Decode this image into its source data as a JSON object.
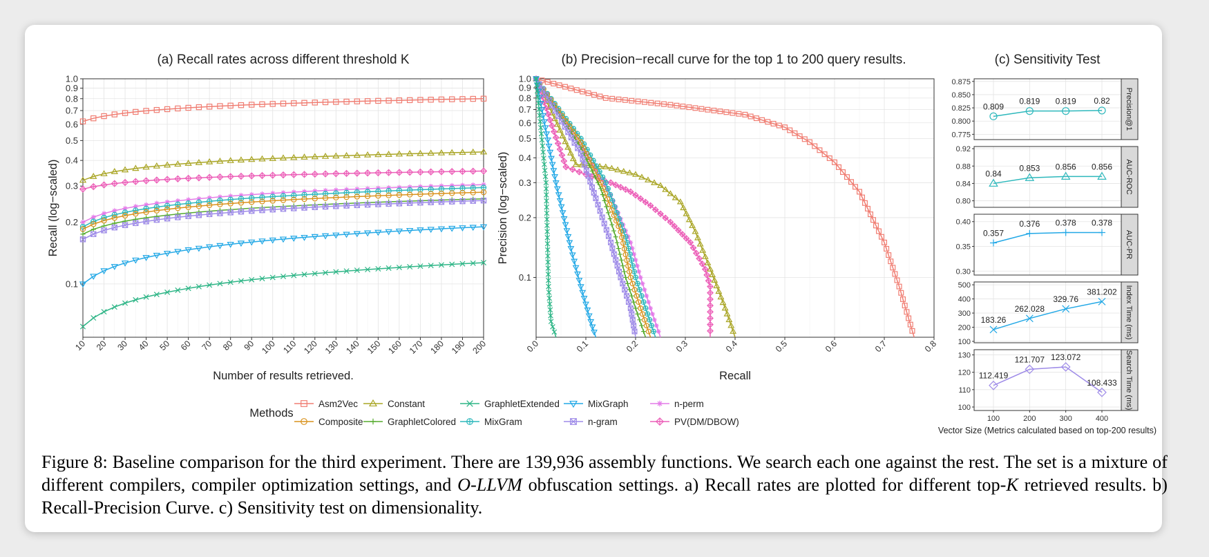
{
  "chart_data": [
    {
      "type": "line"
    },
    {
      "type": "line"
    },
    {
      "type": "line"
    }
  ],
  "legend": {
    "title": "Methods",
    "items": [
      {
        "name": "Asm2Vec",
        "color": "#F07D72",
        "shape": "square"
      },
      {
        "name": "Composite",
        "color": "#D9921D",
        "shape": "circle"
      },
      {
        "name": "Constant",
        "color": "#A9A524",
        "shape": "triangle"
      },
      {
        "name": "GraphletColored",
        "color": "#55AB2D",
        "shape": "plus"
      },
      {
        "name": "GraphletExtended",
        "color": "#2DB586",
        "shape": "cross"
      },
      {
        "name": "MixGram",
        "color": "#2DB8BC",
        "shape": "circle-plus"
      },
      {
        "name": "MixGraph",
        "color": "#22A8E6",
        "shape": "triangle-down"
      },
      {
        "name": "n-gram",
        "color": "#9E8BE8",
        "shape": "square-cross"
      },
      {
        "name": "n-perm",
        "color": "#E37AE8",
        "shape": "asterisk"
      },
      {
        "name": "PV(DM/DBOW)",
        "color": "#EC5FB8",
        "shape": "diamond-plus"
      }
    ]
  },
  "panel_a": {
    "title": "(a) Recall rates across different threshold K",
    "xlabel": "Number of results retrieved.",
    "ylabel": "Recall (log−scaled)",
    "xlim": [
      10,
      200
    ],
    "ylim": [
      0.055,
      1.0
    ],
    "yscale": "log",
    "x_ticks": [
      10,
      20,
      30,
      40,
      50,
      60,
      70,
      80,
      90,
      100,
      110,
      120,
      130,
      140,
      150,
      160,
      170,
      180,
      190,
      200
    ],
    "y_ticks": [
      0.1,
      0.2,
      0.3,
      0.4,
      0.5,
      0.6,
      0.7,
      0.8,
      0.9,
      1.0
    ],
    "y_tick_labels": [
      "0.1",
      "0.2",
      "0.3",
      "0.4",
      "0.5",
      "0.6",
      "0.7",
      "0.8",
      "0.9",
      "1.0"
    ],
    "grid": true,
    "series": [
      {
        "name": "Asm2Vec",
        "start": 0.62,
        "end": 0.8
      },
      {
        "name": "Constant",
        "start": 0.32,
        "end": 0.44
      },
      {
        "name": "PV(DM/DBOW)",
        "start": 0.29,
        "end": 0.355
      },
      {
        "name": "n-perm",
        "start": 0.2,
        "end": 0.305
      },
      {
        "name": "MixGram",
        "start": 0.19,
        "end": 0.295
      },
      {
        "name": "Composite",
        "start": 0.185,
        "end": 0.28
      },
      {
        "name": "GraphletColored",
        "start": 0.175,
        "end": 0.26
      },
      {
        "name": "n-gram",
        "start": 0.165,
        "end": 0.255
      },
      {
        "name": "MixGraph",
        "start": 0.1,
        "end": 0.19
      },
      {
        "name": "GraphletExtended",
        "start": 0.062,
        "end": 0.127
      }
    ]
  },
  "panel_b": {
    "title": "(b) Precision−recall curve for the top 1 to 200 query results.",
    "xlabel": "Recall",
    "ylabel": "Precision (log−scaled)",
    "xlim": [
      0,
      0.8
    ],
    "ylim": [
      0.05,
      1.0
    ],
    "yscale": "log",
    "x_ticks": [
      0.0,
      0.1,
      0.2,
      0.3,
      0.4,
      0.5,
      0.6,
      0.7,
      0.8
    ],
    "x_tick_labels": [
      "0.0",
      "0.1",
      "0.2",
      "0.3",
      "0.4",
      "0.5",
      "0.6",
      "0.7",
      "0.8"
    ],
    "y_ticks": [
      0.1,
      0.2,
      0.3,
      0.4,
      0.5,
      0.6,
      0.7,
      0.8,
      0.9,
      1.0
    ],
    "y_tick_labels": [
      "0.1",
      "0.2",
      "0.3",
      "0.4",
      "0.5",
      "0.6",
      "0.7",
      "0.8",
      "0.9",
      "1.0"
    ],
    "grid": true,
    "series": [
      {
        "name": "Asm2Vec",
        "points": [
          [
            0,
            1.0
          ],
          [
            0.14,
            0.8
          ],
          [
            0.27,
            0.74
          ],
          [
            0.42,
            0.66
          ],
          [
            0.5,
            0.57
          ],
          [
            0.55,
            0.48
          ],
          [
            0.6,
            0.38
          ],
          [
            0.65,
            0.27
          ],
          [
            0.7,
            0.15
          ],
          [
            0.73,
            0.09
          ],
          [
            0.76,
            0.05
          ]
        ]
      },
      {
        "name": "Constant",
        "points": [
          [
            0,
            1.0
          ],
          [
            0.08,
            0.37
          ],
          [
            0.14,
            0.36
          ],
          [
            0.2,
            0.33
          ],
          [
            0.25,
            0.29
          ],
          [
            0.29,
            0.24
          ],
          [
            0.32,
            0.17
          ],
          [
            0.35,
            0.11
          ],
          [
            0.38,
            0.07
          ],
          [
            0.4,
            0.05
          ]
        ]
      },
      {
        "name": "PV(DM/DBOW)",
        "points": [
          [
            0,
            1.0
          ],
          [
            0.06,
            0.36
          ],
          [
            0.1,
            0.33
          ],
          [
            0.15,
            0.3
          ],
          [
            0.19,
            0.27
          ],
          [
            0.23,
            0.23
          ],
          [
            0.27,
            0.19
          ],
          [
            0.31,
            0.15
          ],
          [
            0.34,
            0.11
          ],
          [
            0.35,
            0.09
          ],
          [
            0.35,
            0.05
          ]
        ]
      },
      {
        "name": "n-perm",
        "points": [
          [
            0,
            1.0
          ],
          [
            0.1,
            0.42
          ],
          [
            0.15,
            0.26
          ],
          [
            0.19,
            0.15
          ],
          [
            0.21,
            0.1
          ],
          [
            0.23,
            0.07
          ],
          [
            0.25,
            0.05
          ]
        ]
      },
      {
        "name": "MixGram",
        "points": [
          [
            0,
            1.0
          ],
          [
            0.09,
            0.5
          ],
          [
            0.14,
            0.3
          ],
          [
            0.18,
            0.16
          ],
          [
            0.2,
            0.1
          ],
          [
            0.22,
            0.07
          ],
          [
            0.24,
            0.05
          ]
        ]
      },
      {
        "name": "Composite",
        "points": [
          [
            0,
            1.0
          ],
          [
            0.09,
            0.48
          ],
          [
            0.13,
            0.3
          ],
          [
            0.17,
            0.17
          ],
          [
            0.19,
            0.1
          ],
          [
            0.21,
            0.07
          ],
          [
            0.23,
            0.05
          ]
        ]
      },
      {
        "name": "GraphletColored",
        "points": [
          [
            0,
            1.0
          ],
          [
            0.09,
            0.45
          ],
          [
            0.13,
            0.28
          ],
          [
            0.16,
            0.16
          ],
          [
            0.18,
            0.1
          ],
          [
            0.2,
            0.07
          ],
          [
            0.22,
            0.05
          ]
        ]
      },
      {
        "name": "n-gram",
        "points": [
          [
            0,
            1.0
          ],
          [
            0.09,
            0.42
          ],
          [
            0.12,
            0.25
          ],
          [
            0.15,
            0.15
          ],
          [
            0.17,
            0.1
          ],
          [
            0.19,
            0.07
          ],
          [
            0.2,
            0.05
          ]
        ]
      },
      {
        "name": "MixGraph",
        "points": [
          [
            0,
            1.0
          ],
          [
            0.04,
            0.3
          ],
          [
            0.07,
            0.14
          ],
          [
            0.09,
            0.09
          ],
          [
            0.11,
            0.06
          ],
          [
            0.12,
            0.05
          ]
        ]
      },
      {
        "name": "GraphletExtended",
        "points": [
          [
            0,
            1.0
          ],
          [
            0.02,
            0.3
          ],
          [
            0.025,
            0.09
          ],
          [
            0.03,
            0.06
          ],
          [
            0.04,
            0.05
          ]
        ]
      }
    ]
  },
  "panel_c": {
    "title": "(c) Sensitivity Test",
    "xlabel": "Vector Size (Metrics calculated based on top-200 results)",
    "x": [
      100,
      200,
      300,
      400
    ],
    "x_tick_labels": [
      "100",
      "200",
      "300",
      "400"
    ],
    "subplots": [
      {
        "label": "Precision@1",
        "color": "#2DB8BC",
        "shape": "circle",
        "values": [
          0.809,
          0.819,
          0.819,
          0.82
        ],
        "value_labels": [
          "0.809",
          "0.819",
          "0.819",
          "0.82"
        ],
        "ylim": [
          0.765,
          0.88
        ],
        "ticks": [
          0.775,
          0.8,
          0.825,
          0.85,
          0.875
        ],
        "tick_labels": [
          "0.775",
          "0.800",
          "0.825",
          "0.850",
          "0.875"
        ]
      },
      {
        "label": "AUC-ROC",
        "color": "#2DB8BC",
        "shape": "triangle",
        "values": [
          0.84,
          0.853,
          0.856,
          0.856
        ],
        "value_labels": [
          "0.84",
          "0.853",
          "0.856",
          "0.856"
        ],
        "ylim": [
          0.785,
          0.925
        ],
        "ticks": [
          0.8,
          0.84,
          0.88,
          0.92
        ],
        "tick_labels": [
          "0.80",
          "0.84",
          "0.88",
          "0.92"
        ]
      },
      {
        "label": "AUC-PR",
        "color": "#22A8E6",
        "shape": "plus",
        "values": [
          0.357,
          0.376,
          0.378,
          0.378
        ],
        "value_labels": [
          "0.357",
          "0.376",
          "0.378",
          "0.378"
        ],
        "ylim": [
          0.292,
          0.415
        ],
        "ticks": [
          0.3,
          0.35,
          0.4
        ],
        "tick_labels": [
          "0.30",
          "0.35",
          "0.40"
        ]
      },
      {
        "label": "Index Time (ms)",
        "color": "#22A8E6",
        "shape": "cross",
        "values": [
          183.26,
          262.028,
          329.76,
          381.202
        ],
        "value_labels": [
          "183.26",
          "262.028",
          "329.76",
          "381.202"
        ],
        "ylim": [
          90,
          520
        ],
        "ticks": [
          100,
          200,
          300,
          400,
          500
        ],
        "tick_labels": [
          "100",
          "200",
          "300",
          "400",
          "500"
        ]
      },
      {
        "label": "Search Time (ms)",
        "color": "#9E8BE8",
        "shape": "diamond",
        "values": [
          112.419,
          121.707,
          123.072,
          108.433
        ],
        "value_labels": [
          "112.419",
          "121.707",
          "123.072",
          "108.433"
        ],
        "ylim": [
          98,
          133
        ],
        "ticks": [
          100,
          110,
          120,
          130
        ],
        "tick_labels": [
          "100",
          "110",
          "120",
          "130"
        ]
      }
    ]
  },
  "caption": {
    "part1": "Figure 8: Baseline comparison for the third experiment. There are 139,936 assembly functions. We search each one against the rest. The set is a mixture of different compilers, compiler optimization settings, and ",
    "part2_italic": "O-LLVM",
    "part3": " obfuscation settings. a) Recall rates are plotted for different top-",
    "part4_italic": "K",
    "part5": " retrieved results. b) Recall-Precision Curve. c) Sensitivity test on dimensionality."
  }
}
